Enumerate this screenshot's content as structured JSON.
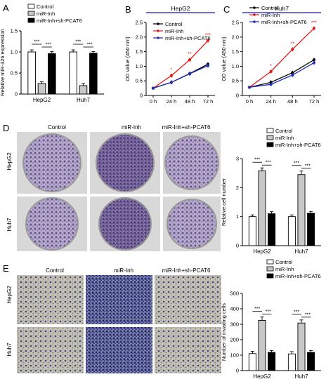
{
  "panel_labels": [
    "A",
    "B",
    "C",
    "D",
    "E"
  ],
  "conditions": [
    "Control",
    "miR-Inh",
    "miR-Inh+sh-PCAT6"
  ],
  "row_labels": [
    "HepG2",
    "Huh7"
  ],
  "colors": {
    "control": "#ffffff",
    "mir_inh": "#c8c8c8",
    "sh_pcat6": "#000000",
    "line_control": "#000000",
    "line_mir": "#e31a1c",
    "line_sh": "#1f2fb4",
    "title_bar": "#3b3bd9",
    "stain_dish": "#7b6a9c",
    "stain_migration": "#2a2f78"
  },
  "chart_data": [
    {
      "id": "A",
      "type": "bar",
      "ylabel": "Relative miR-326 expression",
      "categories": [
        "HepG2",
        "Huh7"
      ],
      "ylim": [
        0,
        1.5
      ],
      "yticks": [
        "0",
        "0.5",
        "1.0",
        "1.5"
      ],
      "legend": [
        "Control",
        "miR-Inh",
        "miR-Inh+sh-PCAT6"
      ],
      "series": [
        {
          "name": "Control",
          "values": [
            1.0,
            1.0
          ],
          "errors": [
            0.05,
            0.05
          ]
        },
        {
          "name": "miR-Inh",
          "values": [
            0.25,
            0.2
          ],
          "errors": [
            0.04,
            0.05
          ]
        },
        {
          "name": "miR-Inh+sh-PCAT6",
          "values": [
            0.96,
            0.97
          ],
          "errors": [
            0.05,
            0.04
          ]
        }
      ],
      "annotations": [
        "***",
        "***",
        "***",
        "***"
      ]
    },
    {
      "id": "B",
      "type": "line",
      "title": "HepG2",
      "ylabel": "OD value (450 nm)",
      "x": [
        "0 h",
        "24 h",
        "48 h",
        "72 h"
      ],
      "ylim": [
        0,
        2.5
      ],
      "yticks": [
        "0",
        "0.5",
        "1.0",
        "1.5",
        "2.0",
        "2.5"
      ],
      "legend": [
        "Control",
        "miR-Inh",
        "miR-Inh+sh-PCAT6"
      ],
      "series": [
        {
          "name": "Control",
          "values": [
            0.25,
            0.45,
            0.75,
            1.07
          ]
        },
        {
          "name": "miR-Inh",
          "values": [
            0.25,
            0.68,
            1.22,
            1.88
          ]
        },
        {
          "name": "miR-Inh+sh-PCAT6",
          "values": [
            0.25,
            0.45,
            0.74,
            1.02
          ]
        }
      ],
      "annotations": [
        "*",
        "**",
        "***"
      ]
    },
    {
      "id": "C",
      "type": "line",
      "title": "Huh7",
      "ylabel": "OD value (450 nm)",
      "x": [
        "0 h",
        "24 h",
        "48 h",
        "72 h"
      ],
      "ylim": [
        0,
        2.5
      ],
      "yticks": [
        "0",
        "0.5",
        "1.0",
        "1.5",
        "2.0",
        "2.5"
      ],
      "legend": [
        "Control",
        "miR-Inh",
        "miR-Inh+sh-PCAT6"
      ],
      "series": [
        {
          "name": "Control",
          "values": [
            0.28,
            0.45,
            0.78,
            1.22
          ]
        },
        {
          "name": "miR-Inh",
          "values": [
            0.28,
            0.82,
            1.58,
            2.3
          ]
        },
        {
          "name": "miR-Inh+sh-PCAT6",
          "values": [
            0.28,
            0.38,
            0.7,
            1.12
          ]
        }
      ],
      "annotations": [
        "*",
        "**",
        "***"
      ]
    },
    {
      "id": "D",
      "type": "bar",
      "ylabel": "Relative cell number",
      "categories": [
        "HepG2",
        "Huh7"
      ],
      "ylim": [
        0,
        3
      ],
      "yticks": [
        "0",
        "1",
        "2",
        "3"
      ],
      "legend": [
        "Control",
        "miR-Inh",
        "miR-Inh+sh-PCAT6"
      ],
      "series": [
        {
          "name": "Control",
          "values": [
            1.0,
            1.0
          ],
          "errors": [
            0.06,
            0.06
          ]
        },
        {
          "name": "miR-Inh",
          "values": [
            2.58,
            2.45
          ],
          "errors": [
            0.1,
            0.12
          ]
        },
        {
          "name": "miR-Inh+sh-PCAT6",
          "values": [
            1.1,
            1.12
          ],
          "errors": [
            0.07,
            0.06
          ]
        }
      ],
      "annotations": [
        "***",
        "***",
        "***",
        "***"
      ]
    },
    {
      "id": "E",
      "type": "bar",
      "ylabel": "Number of invading cells",
      "categories": [
        "HepG2",
        "Huh7"
      ],
      "ylim": [
        0,
        500
      ],
      "yticks": [
        "0",
        "100",
        "200",
        "300",
        "400",
        "500"
      ],
      "legend": [
        "Control",
        "miR-Inh",
        "miR-Inh+sh-PCAT6"
      ],
      "series": [
        {
          "name": "Control",
          "values": [
            110,
            108
          ],
          "errors": [
            15,
            15
          ]
        },
        {
          "name": "miR-Inh",
          "values": [
            325,
            308
          ],
          "errors": [
            22,
            20
          ]
        },
        {
          "name": "miR-Inh+sh-PCAT6",
          "values": [
            118,
            118
          ],
          "errors": [
            12,
            12
          ]
        }
      ],
      "annotations": [
        "***",
        "***",
        "***",
        "***"
      ]
    }
  ]
}
